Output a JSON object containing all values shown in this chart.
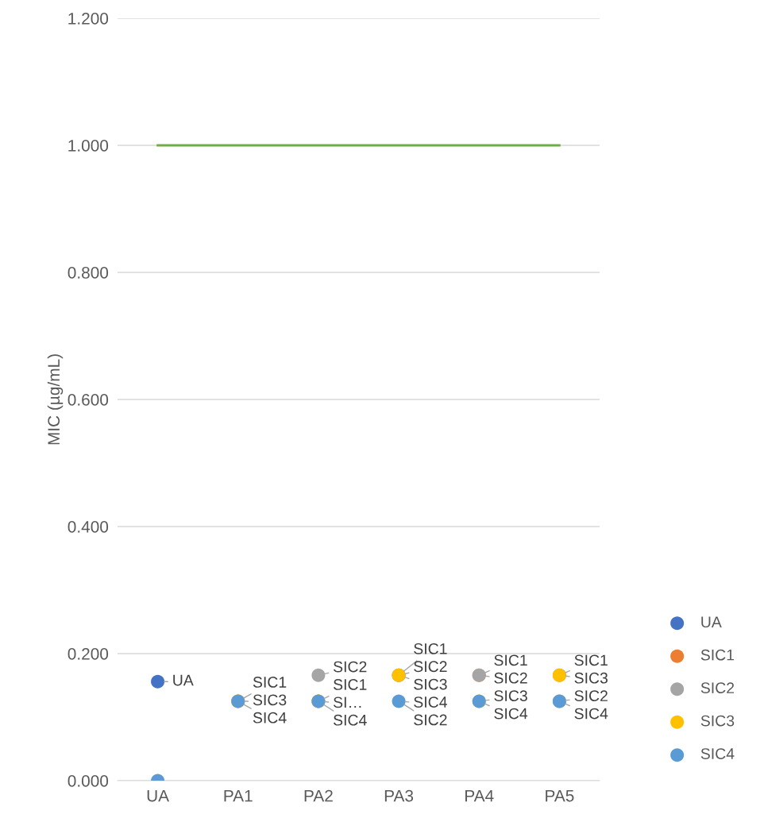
{
  "chart_data": {
    "type": "scatter",
    "ylabel": "MIC (µg/mL)",
    "categories": [
      "UA",
      "PA1",
      "PA2",
      "PA3",
      "PA4",
      "PA5"
    ],
    "ylim": [
      0,
      1.2
    ],
    "yticks": [
      {
        "value": 0,
        "label": "0.000"
      },
      {
        "value": 0.2,
        "label": "0.200"
      },
      {
        "value": 0.4,
        "label": "0.400"
      },
      {
        "value": 0.6,
        "label": "0.600"
      },
      {
        "value": 0.8,
        "label": "0.800"
      },
      {
        "value": 1.0,
        "label": "1.000"
      },
      {
        "value": 1.2,
        "label": "1.200"
      }
    ],
    "grid": "y",
    "legend": "right",
    "marker": "circle",
    "series": [
      {
        "type": "line",
        "color": "#70ad47",
        "marker": "none",
        "values": [
          1.0,
          1.0,
          1.0,
          1.0,
          1.0,
          1.0
        ]
      },
      {
        "name": "UA",
        "color": "#4472c4",
        "values": [
          0.156,
          null,
          null,
          null,
          null,
          null
        ],
        "value_labels": [
          "UA",
          null,
          null,
          null,
          null,
          null
        ]
      },
      {
        "name": "SIC1",
        "color": "#ed7d31",
        "values": [
          null,
          0.125,
          0.125,
          0.166,
          0.166,
          0.166
        ],
        "value_labels": [
          null,
          "SIC1",
          "SIC1",
          "SIC1",
          "SIC1",
          "SIC1"
        ]
      },
      {
        "name": "SIC2",
        "color": "#a5a5a5",
        "values": [
          null,
          null,
          0.166,
          0.166,
          0.166,
          0.125
        ],
        "value_labels": [
          null,
          null,
          "SIC2",
          "SIC2",
          "SIC2",
          "SIC2"
        ]
      },
      {
        "name": "SIC3",
        "color": "#ffc000",
        "values": [
          null,
          0.125,
          0.125,
          0.166,
          0.125,
          0.166
        ],
        "value_labels": [
          null,
          "SIC3",
          "SI…",
          "SIC3",
          "SIC3",
          "SIC3"
        ]
      },
      {
        "name": "SIC4",
        "color": "#5b9bd5",
        "values": [
          0,
          0.125,
          0.125,
          0.125,
          0.125,
          0.125
        ],
        "value_labels": [
          null,
          "SIC4",
          "SIC4",
          "SIC4",
          "SIC4",
          "SIC4"
        ]
      }
    ],
    "annotations": [
      {
        "text": "SIC2",
        "x": "PA3",
        "y": 0.125
      }
    ]
  }
}
